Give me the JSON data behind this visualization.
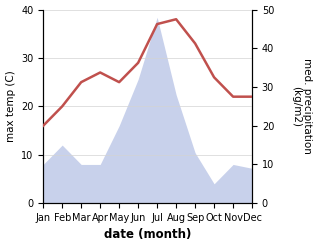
{
  "months": [
    "Jan",
    "Feb",
    "Mar",
    "Apr",
    "May",
    "Jun",
    "Jul",
    "Aug",
    "Sep",
    "Oct",
    "Nov",
    "Dec"
  ],
  "temperature": [
    16,
    20,
    25,
    27,
    25,
    29,
    37,
    38,
    33,
    26,
    22,
    22
  ],
  "precipitation": [
    10,
    15,
    10,
    10,
    20,
    32,
    48,
    28,
    13,
    5,
    10,
    9
  ],
  "temp_color": "#c0504d",
  "precip_color_fill": "#bfc9e8",
  "temp_ylim": [
    0,
    40
  ],
  "precip_ylim": [
    0,
    50
  ],
  "xlabel": "date (month)",
  "ylabel_left": "max temp (C)",
  "ylabel_right": "med. precipitation\n(kg/m2)",
  "temp_linewidth": 1.8,
  "xlabel_fontsize": 8.5,
  "ylabel_fontsize": 7.5,
  "tick_fontsize": 7,
  "yticks_left": [
    0,
    10,
    20,
    30,
    40
  ],
  "yticks_right": [
    0,
    10,
    20,
    30,
    40,
    50
  ]
}
